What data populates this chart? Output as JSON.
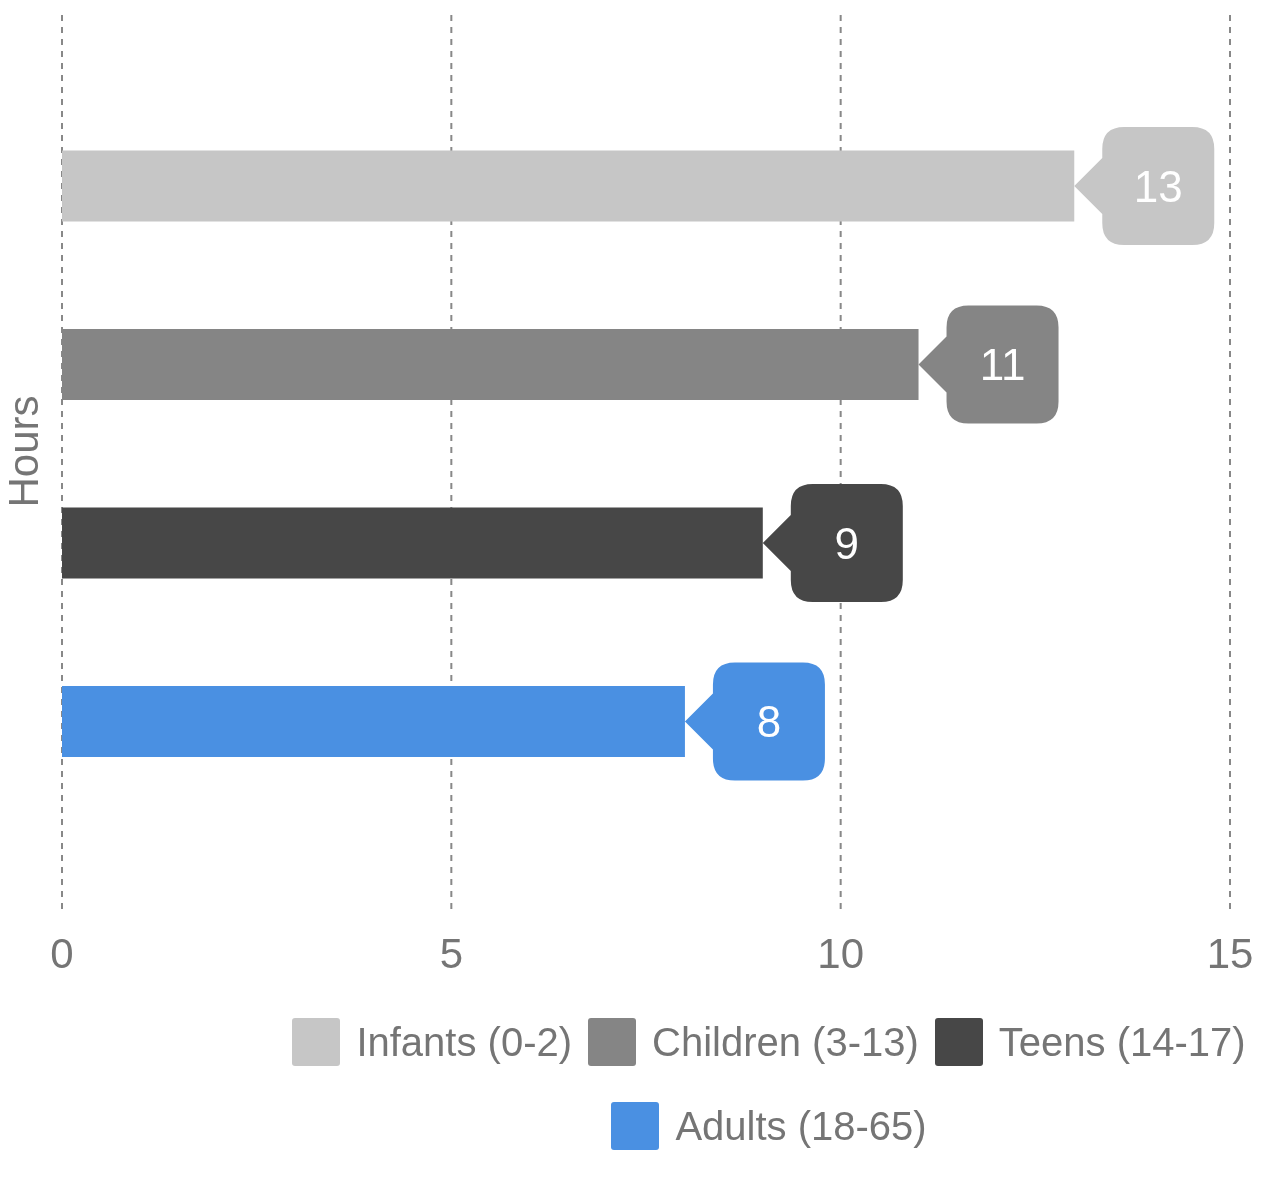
{
  "chart_data": {
    "type": "bar",
    "orientation": "horizontal",
    "ylabel": "Hours",
    "categories": [
      null,
      null,
      null,
      null
    ],
    "series": [
      {
        "name": "Infants (0-2)",
        "color": "#c6c6c6",
        "values": [
          13,
          null,
          null,
          null
        ]
      },
      {
        "name": "Children (3-13)",
        "color": "#858585",
        "values": [
          null,
          11,
          null,
          null
        ]
      },
      {
        "name": "Teens (14-17)",
        "color": "#474747",
        "values": [
          null,
          null,
          9,
          null
        ]
      },
      {
        "name": "Adults (18-65)",
        "color": "#4a90e2",
        "values": [
          null,
          null,
          null,
          8
        ]
      }
    ],
    "xlim": [
      0,
      15
    ],
    "xticks": [
      0,
      5,
      10,
      15
    ],
    "grid": "x",
    "line_style": "dashed",
    "legend": "bottom",
    "data_labels": true,
    "tick_labels": "x"
  }
}
